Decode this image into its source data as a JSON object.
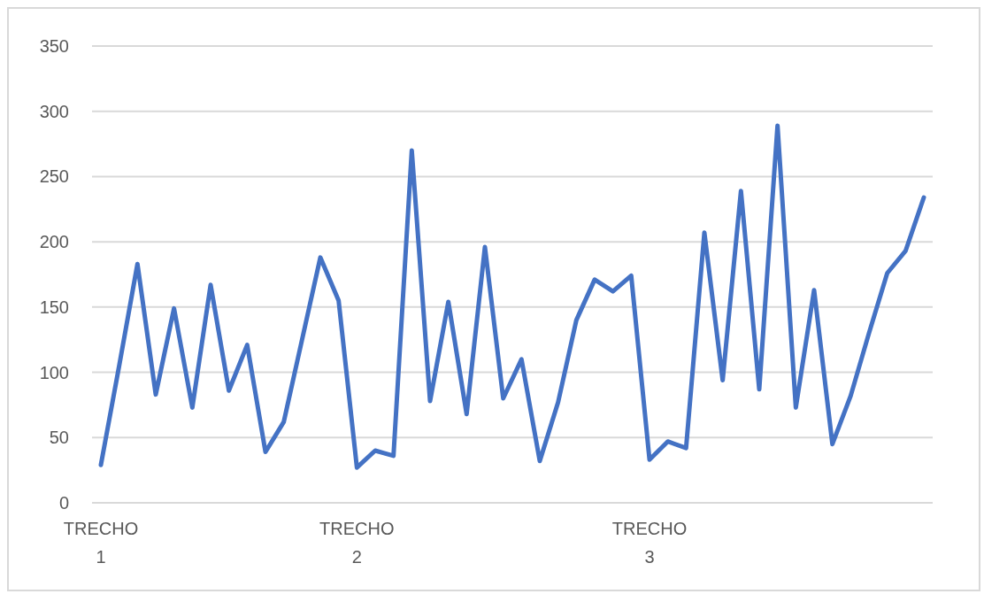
{
  "chart_data": {
    "type": "line",
    "categories": [
      "TRECHO 1",
      null,
      null,
      null,
      null,
      null,
      null,
      null,
      null,
      null,
      null,
      null,
      null,
      null,
      "TRECHO 2",
      null,
      null,
      null,
      null,
      null,
      null,
      null,
      null,
      null,
      null,
      null,
      null,
      null,
      null,
      null,
      "TRECHO 3",
      null,
      null,
      null,
      null,
      null,
      null,
      null,
      null,
      null,
      null,
      null,
      null,
      null,
      null,
      null
    ],
    "series": [
      {
        "color": "#4472c4",
        "values": [
          29,
          105,
          183,
          83,
          149,
          73,
          167,
          86,
          121,
          39,
          62,
          125,
          188,
          155,
          27,
          40,
          36,
          270,
          78,
          154,
          68,
          196,
          80,
          110,
          32,
          77,
          140,
          171,
          162,
          174,
          33,
          47,
          42,
          207,
          94,
          239,
          87,
          289,
          73,
          163,
          45,
          82,
          130,
          176,
          193,
          234
        ]
      }
    ],
    "ylim": [
      0,
      350
    ],
    "yticks": [
      0,
      50,
      100,
      150,
      200,
      250,
      300,
      350
    ],
    "grid": "y",
    "marker": "none",
    "line_style": "solid"
  }
}
